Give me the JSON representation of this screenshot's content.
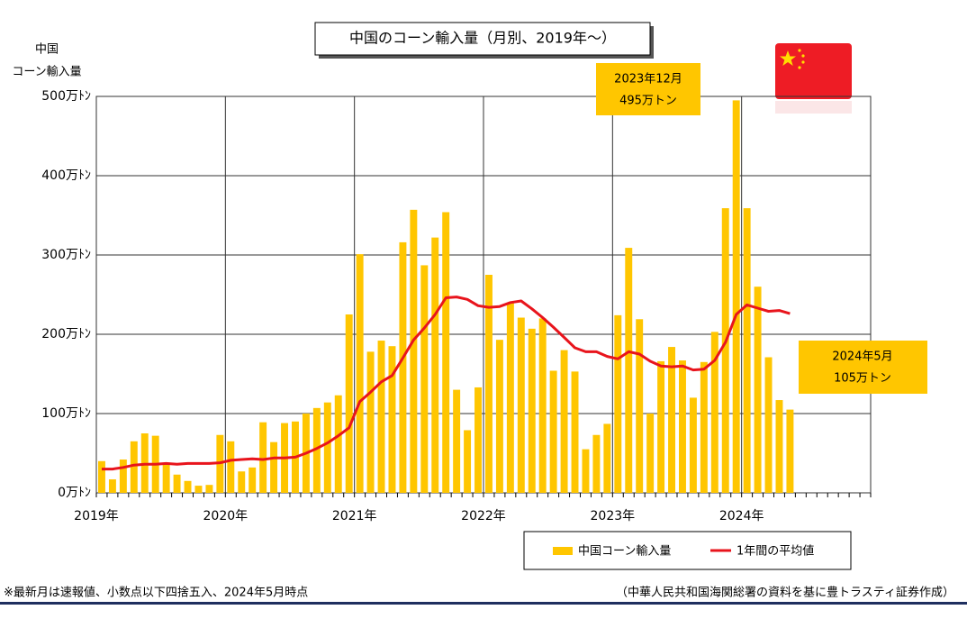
{
  "chart_data": {
    "type": "bar",
    "title": "中国のコーン輸入量（月別、2019年～）",
    "y_axis_label": [
      "中国",
      "コーン輸入量"
    ],
    "categories": [
      "2019年",
      null,
      null,
      null,
      null,
      null,
      null,
      null,
      null,
      null,
      null,
      null,
      "2020年",
      null,
      null,
      null,
      null,
      null,
      null,
      null,
      null,
      null,
      null,
      null,
      "2021年",
      null,
      null,
      null,
      null,
      null,
      null,
      null,
      null,
      null,
      null,
      null,
      "2022年",
      null,
      null,
      null,
      null,
      null,
      null,
      null,
      null,
      null,
      null,
      null,
      "2023年",
      null,
      null,
      null,
      null,
      null,
      null,
      null,
      null,
      null,
      null,
      null,
      "2024年",
      null,
      null,
      null,
      null
    ],
    "series": [
      {
        "name": "中国コーン輸入量",
        "type": "bar",
        "color": "#ffc600",
        "values": [
          40,
          17,
          42,
          65,
          75,
          72,
          37,
          23,
          15,
          9,
          10,
          73,
          65,
          27,
          32,
          89,
          64,
          88,
          90,
          100,
          107,
          114,
          123,
          225,
          301,
          178,
          192,
          185,
          316,
          357,
          287,
          322,
          354,
          130,
          79,
          133,
          275,
          193,
          240,
          221,
          207,
          220,
          154,
          180,
          153,
          55,
          73,
          87,
          224,
          309,
          219,
          100,
          166,
          184,
          167,
          120,
          165,
          203,
          359,
          495,
          359,
          260,
          171,
          117,
          105
        ]
      },
      {
        "name": "1年間の平均値",
        "type": "line",
        "color": "#e8141c",
        "values": [
          30,
          30,
          32,
          35,
          36,
          36,
          37,
          36,
          37,
          37,
          37,
          38,
          41,
          42,
          43,
          42,
          44,
          44,
          45,
          50,
          56,
          63,
          72,
          82,
          115,
          127,
          140,
          148,
          170,
          193,
          208,
          225,
          246,
          247,
          244,
          236,
          234,
          235,
          240,
          242,
          232,
          221,
          209,
          196,
          183,
          178,
          178,
          172,
          169,
          178,
          175,
          166,
          160,
          159,
          160,
          155,
          156,
          167,
          190,
          225,
          237,
          233,
          229,
          230,
          226
        ]
      }
    ],
    "ylim": [
      0,
      500
    ],
    "yticks": [
      {
        "value": 0,
        "label": "0万ﾄﾝ"
      },
      {
        "value": 100,
        "label": "100万ﾄﾝ"
      },
      {
        "value": 200,
        "label": "200万ﾄﾝ"
      },
      {
        "value": 300,
        "label": "300万ﾄﾝ"
      },
      {
        "value": 400,
        "label": "400万ﾄﾝ"
      },
      {
        "value": 500,
        "label": "500万ﾄﾝ"
      }
    ],
    "grid": true,
    "annotations": [
      {
        "lines": [
          "2023年12月",
          "495万トン"
        ]
      },
      {
        "lines": [
          "2024年5月",
          "105万トン"
        ]
      }
    ],
    "footnote_left": "※最新月は速報値、小数点以下四捨五入、2024年5月時点",
    "footnote_right": "（中華人民共和国海関総署の資料を基に豊トラスティ証券作成）"
  }
}
